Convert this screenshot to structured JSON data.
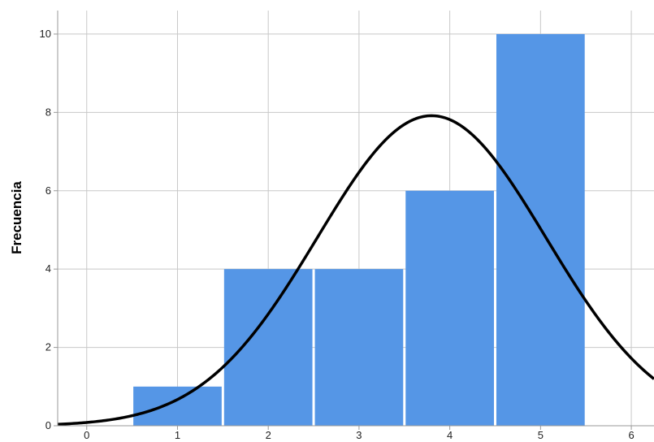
{
  "chart_data": {
    "type": "bar",
    "subtype": "histogram-with-normal-curve",
    "title": "",
    "xlabel": "",
    "ylabel": "Frecuencia",
    "bins": [
      {
        "center": 1,
        "start": 0.5,
        "end": 1.5,
        "value": 1
      },
      {
        "center": 2,
        "start": 1.5,
        "end": 2.5,
        "value": 4
      },
      {
        "center": 3,
        "start": 2.5,
        "end": 3.5,
        "value": 4
      },
      {
        "center": 4,
        "start": 3.5,
        "end": 4.5,
        "value": 6
      },
      {
        "center": 5,
        "start": 4.5,
        "end": 5.5,
        "value": 10
      }
    ],
    "normal_curve": {
      "mean": 3.8,
      "sd": 1.26,
      "scale": 25
    },
    "xlim": [
      -0.32,
      6.25
    ],
    "ylim": [
      0,
      10.6
    ],
    "xticks": [
      "0",
      "1",
      "2",
      "3",
      "4",
      "5",
      "6"
    ],
    "yticks": [
      "0",
      "2",
      "4",
      "6",
      "8",
      "10"
    ],
    "grid": true,
    "colors": {
      "bar": "#5596e6",
      "curve": "#000000",
      "grid": "#c8c8c8",
      "axis": "#999999"
    }
  }
}
